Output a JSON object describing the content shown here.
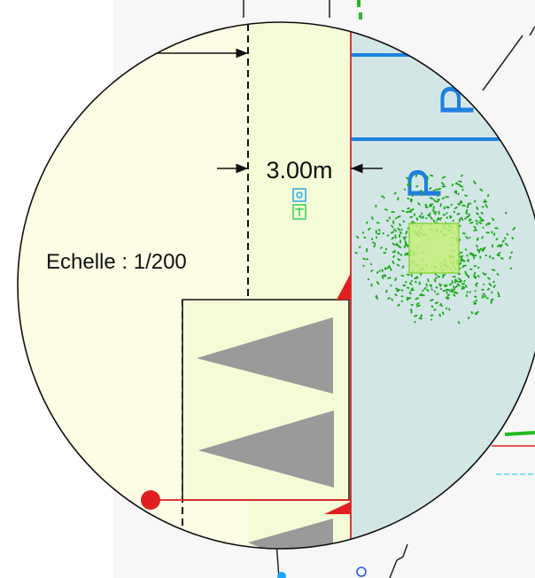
{
  "drawing": {
    "scale_label": "Echelle : 1/200",
    "dimension_label": "3.00m",
    "parking_symbol": "P",
    "parking_spaces_shown": 2
  },
  "colors": {
    "zone_fill": "#fdfde6",
    "sidewalk_fill": "#f4fbd6",
    "parking_fill": "#d3e6e6",
    "parking_marking": "#1e7fe0",
    "tree_foliage": "#1faa1f",
    "boundary_line": "#e02020",
    "triangle_fill": "#9a9a9a",
    "dashed_line": "#111111"
  },
  "icons": {
    "tree": "tree-canopy-icon",
    "marker": "red-dot-marker-icon",
    "device": "small-device-icon"
  }
}
